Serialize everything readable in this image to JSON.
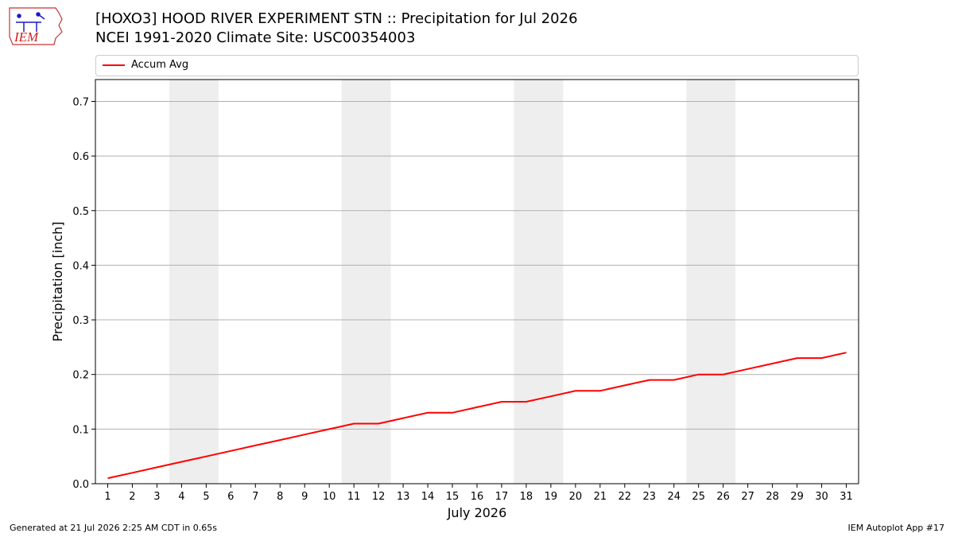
{
  "header": {
    "title_line1": "[HOXO3] HOOD RIVER EXPERIMENT STN :: Precipitation for Jul 2026",
    "title_line2": "NCEI 1991-2020 Climate Site: USC00354003",
    "logo_text": "IEM"
  },
  "footer": {
    "generated": "Generated at 21 Jul 2026 2:25 AM CDT in 0.65s",
    "app": "IEM Autoplot App #17"
  },
  "colors": {
    "series": "#ff0000",
    "weekend_band": "#eeeeee",
    "grid": "#b0b0b0"
  },
  "chart_data": {
    "type": "line",
    "title": "[HOXO3] HOOD RIVER EXPERIMENT STN :: Precipitation for Jul 2026",
    "subtitle": "NCEI 1991-2020 Climate Site: USC00354003",
    "xlabel": "July 2026",
    "ylabel": "Precipitation [inch]",
    "xlim": [
      0.5,
      31.5
    ],
    "ylim": [
      0.0,
      0.74
    ],
    "x_ticks": [
      1,
      2,
      3,
      4,
      5,
      6,
      7,
      8,
      9,
      10,
      11,
      12,
      13,
      14,
      15,
      16,
      17,
      18,
      19,
      20,
      21,
      22,
      23,
      24,
      25,
      26,
      27,
      28,
      29,
      30,
      31
    ],
    "y_ticks": [
      "0.0",
      "0.1",
      "0.2",
      "0.3",
      "0.4",
      "0.5",
      "0.6",
      "0.7"
    ],
    "y_tick_values": [
      0.0,
      0.1,
      0.2,
      0.3,
      0.4,
      0.5,
      0.6,
      0.7
    ],
    "grid": "horizontal",
    "legend_position": "top",
    "shaded_day_ranges": [
      [
        4,
        5
      ],
      [
        11,
        12
      ],
      [
        18,
        19
      ],
      [
        25,
        26
      ]
    ],
    "series": [
      {
        "name": "Accum Avg",
        "x": [
          1,
          2,
          3,
          4,
          5,
          6,
          7,
          8,
          9,
          10,
          11,
          12,
          13,
          14,
          15,
          16,
          17,
          18,
          19,
          20,
          21,
          22,
          23,
          24,
          25,
          26,
          27,
          28,
          29,
          30,
          31
        ],
        "values": [
          0.01,
          0.02,
          0.03,
          0.04,
          0.05,
          0.06,
          0.07,
          0.08,
          0.09,
          0.1,
          0.11,
          0.11,
          0.12,
          0.13,
          0.13,
          0.14,
          0.15,
          0.15,
          0.16,
          0.17,
          0.17,
          0.18,
          0.19,
          0.19,
          0.2,
          0.2,
          0.21,
          0.22,
          0.23,
          0.23,
          0.24
        ]
      }
    ]
  }
}
